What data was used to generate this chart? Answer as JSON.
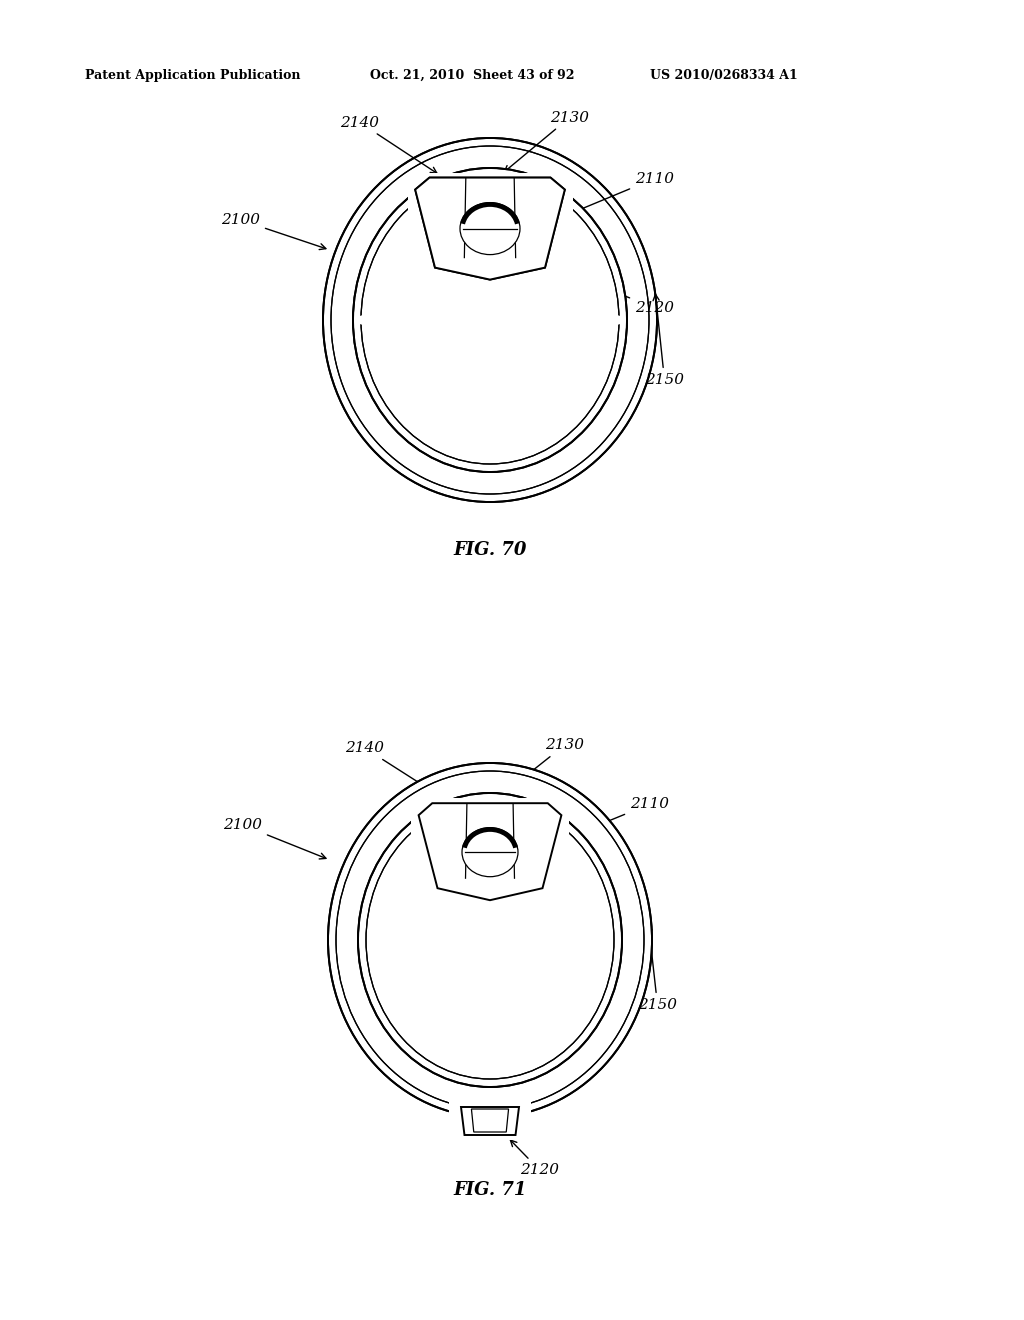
{
  "bg_color": "#ffffff",
  "header_left": "Patent Application Publication",
  "header_mid": "Oct. 21, 2010  Sheet 43 of 92",
  "header_right": "US 2010/0268334 A1",
  "fig70_label": "FIG. 70",
  "fig71_label": "FIG. 71",
  "fig70_ref": "2100",
  "fig71_ref": "2100",
  "labels": {
    "2100": "2100",
    "2110": "2110",
    "2120": "2120",
    "2130": "2130",
    "2140": "2140",
    "2150": "2150"
  }
}
